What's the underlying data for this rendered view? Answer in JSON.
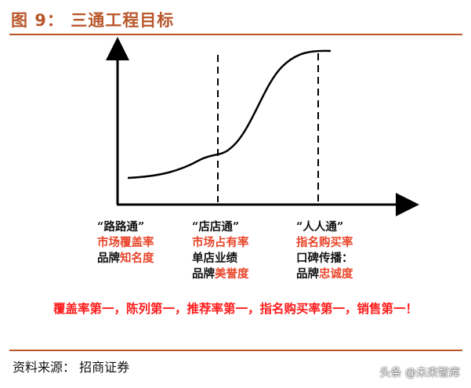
{
  "title": "图 9：  三通工程目标",
  "columns": [
    {
      "heading": "“路路通”",
      "lines": [
        {
          "segments": [
            {
              "text": "市场覆盖率",
              "color": "red"
            }
          ]
        },
        {
          "segments": [
            {
              "text": "品牌",
              "color": "dark"
            },
            {
              "text": "知名度",
              "color": "red"
            }
          ]
        }
      ]
    },
    {
      "heading": "“店店通”",
      "lines": [
        {
          "segments": [
            {
              "text": "市场占有率",
              "color": "red"
            }
          ]
        },
        {
          "segments": [
            {
              "text": "单店业绩",
              "color": "dark"
            }
          ]
        },
        {
          "segments": [
            {
              "text": "品牌",
              "color": "dark"
            },
            {
              "text": "美誉度",
              "color": "red"
            }
          ]
        }
      ]
    },
    {
      "heading": "“人人通”",
      "lines": [
        {
          "segments": [
            {
              "text": "指名购买率",
              "color": "red"
            }
          ]
        },
        {
          "segments": [
            {
              "text": "口碑传播：",
              "color": "dark"
            }
          ]
        },
        {
          "segments": [
            {
              "text": "品牌",
              "color": "dark"
            },
            {
              "text": "忠诚度",
              "color": "red"
            }
          ]
        }
      ]
    }
  ],
  "slogan": "覆盖率第一，陈列第一，推荐率第一，指名购买率第一，销售第一！",
  "source": "资料来源：  招商证券",
  "watermark": "头条 @未来智库",
  "colors": {
    "title": "#b8562a",
    "red": "#e8452a",
    "slogan": "#ff1a1a",
    "axis": "#000000"
  }
}
